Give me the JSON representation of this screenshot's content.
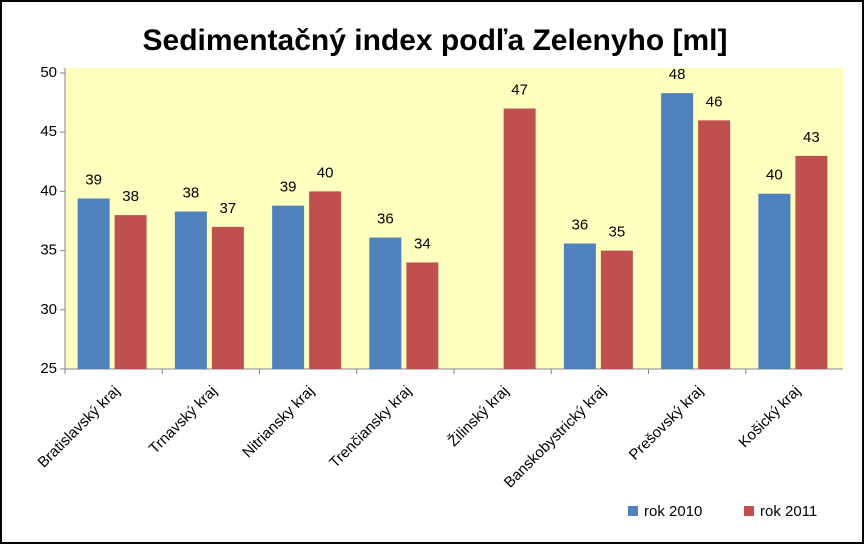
{
  "chart_data": {
    "type": "bar",
    "title": "Sedimentačný index podľa Zelenyho [ml]",
    "categories": [
      "Bratislavský kraj",
      "Trnavský kraj",
      "Nitriansky kraj",
      "Trenčiansky kraj",
      "Žilinský kraj",
      "Banskobystrický kraj",
      "Prešovský kraj",
      "Košický kraj"
    ],
    "series": [
      {
        "name": "rok 2010",
        "color": "#4f81bd",
        "values": [
          39.4,
          38.3,
          38.8,
          36.1,
          null,
          35.6,
          48.3,
          39.8
        ],
        "value_labels": [
          "39",
          "38",
          "39",
          "36",
          null,
          "36",
          "48",
          "40"
        ]
      },
      {
        "name": "rok 2011",
        "color": "#c0504d",
        "values": [
          38,
          37,
          40,
          34,
          47,
          35,
          46,
          43
        ]
      }
    ],
    "ylim": [
      25,
      50
    ],
    "yticks": [
      25,
      30,
      35,
      40,
      45,
      50
    ],
    "grid": false,
    "plot_background": "#ffffc0",
    "legend": "bottom-right"
  }
}
